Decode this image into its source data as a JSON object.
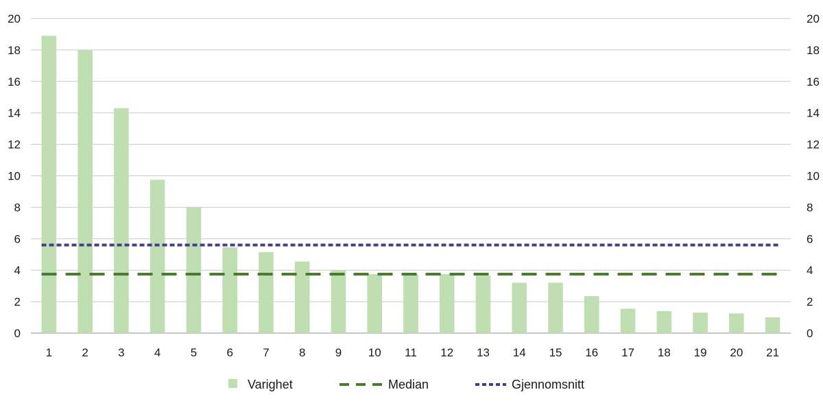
{
  "chart_data": {
    "type": "bar",
    "categories": [
      "1",
      "2",
      "3",
      "4",
      "5",
      "6",
      "7",
      "8",
      "9",
      "10",
      "11",
      "12",
      "13",
      "14",
      "15",
      "16",
      "17",
      "18",
      "19",
      "20",
      "21"
    ],
    "series": [
      {
        "name": "Varighet",
        "type": "bar",
        "color": "#bfdfb3",
        "values": [
          18.9,
          18.0,
          14.3,
          9.75,
          8.0,
          5.45,
          5.15,
          4.55,
          4.0,
          3.75,
          3.75,
          3.75,
          3.65,
          3.2,
          3.2,
          2.35,
          1.55,
          1.4,
          1.3,
          1.25,
          1.0
        ]
      },
      {
        "name": "Median",
        "type": "line",
        "style": "dashed",
        "color": "#4a7a2e",
        "value": 3.75
      },
      {
        "name": "Gjennomsnitt",
        "type": "line",
        "style": "dotted",
        "color": "#4b3a8c",
        "value": 5.6
      }
    ],
    "ylim": [
      0,
      20
    ],
    "yticks": [
      "0",
      "2",
      "4",
      "6",
      "8",
      "10",
      "12",
      "14",
      "16",
      "18",
      "20"
    ],
    "y_axis_both_sides": true,
    "grid": true,
    "legend_position": "bottom",
    "title": "",
    "xlabel": "",
    "ylabel": ""
  }
}
